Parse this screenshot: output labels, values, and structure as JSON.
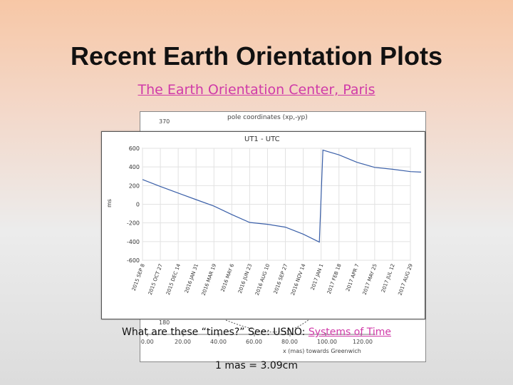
{
  "slide": {
    "title": "Recent Earth Orientation Plots",
    "link_text": "The Earth Orientation Center, Paris",
    "times_question": "What are these “times?”  See: USNO: ",
    "times_link": "Systems of Time",
    "mas_note": "1 mas = 3.09cm"
  },
  "back_plot": {
    "title": "pole coordinates (xp,-yp)",
    "top_tick": "370",
    "bottom_y_tick": "180",
    "x_ticks": [
      "-0.00",
      "20.00",
      "40.00",
      "60.00",
      "80.00",
      "100.00",
      "120.00"
    ],
    "x_label": "x (mas)  towards Greenwich"
  },
  "chart_data": {
    "type": "line",
    "title": "UT1 - UTC",
    "ylabel": "ms",
    "ylim": [
      -600,
      600
    ],
    "y_ticks": [
      600,
      400,
      200,
      0,
      -200,
      -400,
      -600
    ],
    "x_tick_labels": [
      "2015 SEP 8",
      "2015 OCT 27",
      "2015 DEC 14",
      "2016 JAN 31",
      "2016 MAR 19",
      "2016 MAY 6",
      "2016 JUN 23",
      "2016 AUG 10",
      "2016 SEP 27",
      "2016 NOV 14",
      "2017 JAN 1",
      "2017 FEB 18",
      "2017 APR 7",
      "2017 MAY 25",
      "2017 JUL 12",
      "2017 AUG 29"
    ],
    "x": [
      0,
      1,
      2,
      3,
      4,
      5,
      6,
      7,
      8,
      9,
      9.9,
      10.1,
      11,
      12,
      13,
      14,
      15,
      15.6
    ],
    "values": [
      265,
      190,
      120,
      50,
      -20,
      -110,
      -195,
      -215,
      -245,
      -320,
      -405,
      580,
      530,
      450,
      395,
      375,
      350,
      345
    ]
  },
  "colors": {
    "title": "#111111",
    "link": "#d03aa8",
    "series": "#3a5fa8"
  }
}
